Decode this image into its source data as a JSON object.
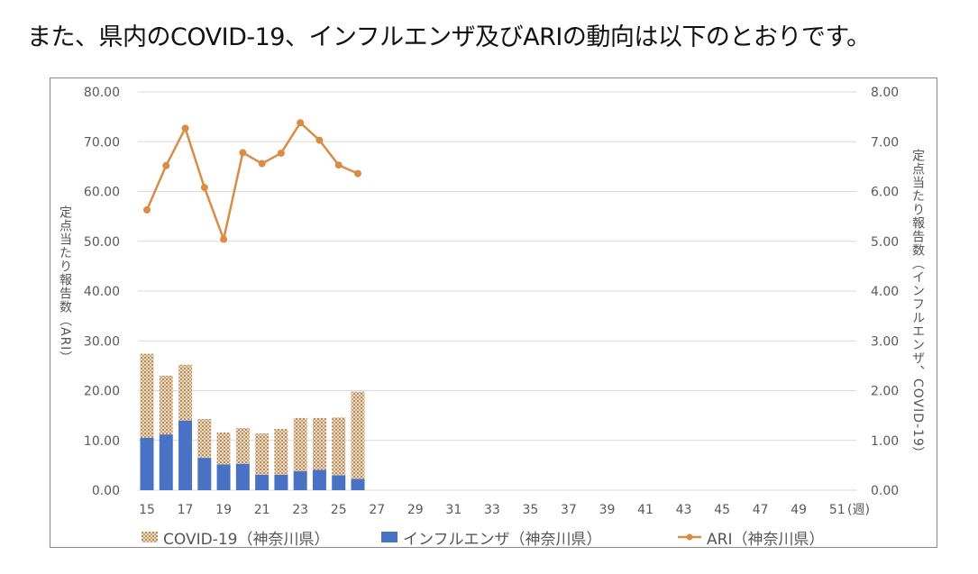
{
  "heading": "また、県内のCOVID-19、インフルエンザ及びARIの動向は以下のとおりです。",
  "chart_data": {
    "type": "bar",
    "x_axis": {
      "ticks": [
        "15",
        "17",
        "19",
        "21",
        "23",
        "25",
        "27",
        "29",
        "31",
        "33",
        "35",
        "37",
        "39",
        "41",
        "43",
        "45",
        "47",
        "49",
        "51"
      ],
      "unit_label": "(週)",
      "range": [
        15,
        52
      ]
    },
    "y_left": {
      "label": "定点当たり報告数（ARI）",
      "ticks": [
        "0.00",
        "10.00",
        "20.00",
        "30.00",
        "40.00",
        "50.00",
        "60.00",
        "70.00",
        "80.00"
      ],
      "ylim": [
        0,
        80
      ]
    },
    "y_right": {
      "label": "定点当たり報告数（インフルエンザ、COVID-19）",
      "ticks": [
        "0.00",
        "1.00",
        "2.00",
        "3.00",
        "4.00",
        "5.00",
        "6.00",
        "7.00",
        "8.00"
      ],
      "ylim": [
        0,
        8
      ]
    },
    "weeks": [
      15,
      16,
      17,
      18,
      19,
      20,
      21,
      22,
      23,
      24,
      25,
      26
    ],
    "series": [
      {
        "name": "COVID-19（神奈川県）",
        "type": "stacked-bar",
        "axis": "right",
        "color": "#d8b98c",
        "values": [
          1.69,
          1.18,
          1.12,
          0.78,
          0.64,
          0.72,
          0.83,
          0.92,
          1.07,
          1.04,
          1.16,
          1.75
        ]
      },
      {
        "name": "インフルエンザ（神奈川県）",
        "type": "stacked-bar",
        "axis": "right",
        "color": "#4a72c4",
        "values": [
          1.05,
          1.12,
          1.4,
          0.65,
          0.52,
          0.53,
          0.31,
          0.31,
          0.38,
          0.41,
          0.3,
          0.23
        ]
      },
      {
        "name": "ARI（神奈川県）",
        "type": "line",
        "axis": "left",
        "color": "#d98c45",
        "values": [
          56.3,
          65.2,
          72.7,
          60.8,
          50.4,
          67.8,
          65.6,
          67.7,
          73.8,
          70.3,
          65.3,
          63.6
        ]
      }
    ],
    "grid": true,
    "legend_position": "bottom"
  }
}
